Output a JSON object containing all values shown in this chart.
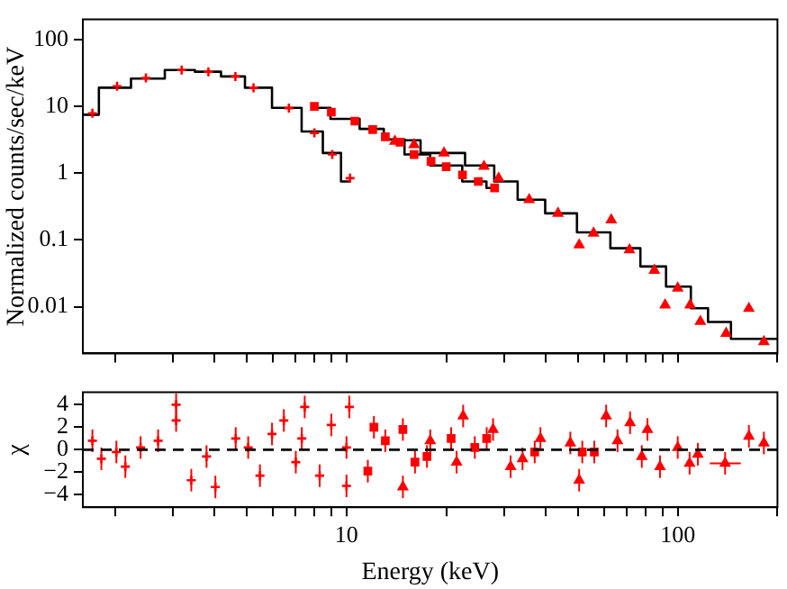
{
  "chart_data": [
    {
      "type": "scatter",
      "ylabel": "Normalized counts/sec/keV",
      "log": "xy",
      "grid": false,
      "legend": false,
      "tick_labels": "y",
      "xlim": [
        1.6,
        200
      ],
      "ylim": [
        0.002,
        200
      ],
      "xticks": [
        {
          "value": 2,
          "label": null
        },
        {
          "value": 3,
          "label": null
        },
        {
          "value": 4,
          "label": null
        },
        {
          "value": 5,
          "label": null
        },
        {
          "value": 6,
          "label": null
        },
        {
          "value": 7,
          "label": null
        },
        {
          "value": 8,
          "label": null
        },
        {
          "value": 9,
          "label": null
        },
        {
          "value": 10,
          "label": null
        },
        {
          "value": 20,
          "label": null
        },
        {
          "value": 30,
          "label": null
        },
        {
          "value": 40,
          "label": null
        },
        {
          "value": 50,
          "label": null
        },
        {
          "value": 60,
          "label": null
        },
        {
          "value": 70,
          "label": null
        },
        {
          "value": 80,
          "label": null
        },
        {
          "value": 90,
          "label": null
        },
        {
          "value": 100,
          "label": null
        },
        {
          "value": 200,
          "label": null
        }
      ],
      "yticks": [
        0.01,
        0.1,
        1,
        10,
        100
      ],
      "series": [
        {
          "type": "scatter",
          "marker": "cross",
          "color": "#ff0000",
          "x": [
            1.71,
            2.03,
            2.48,
            3.18,
            3.83,
            4.62,
            5.24,
            6.7,
            8.0,
            9.06,
            10.25
          ],
          "values": [
            7.9,
            20,
            26.6,
            35,
            33,
            28,
            19,
            9.4,
            4,
            1.9,
            0.84
          ]
        },
        {
          "type": "scatter",
          "marker": "square",
          "color": "#ff0000",
          "x": [
            8.0,
            9.0,
            10.6,
            12,
            13.1,
            14.5,
            16,
            18,
            20,
            22.4,
            25,
            28
          ],
          "values": [
            10,
            8.2,
            6.0,
            4.5,
            3.5,
            2.9,
            1.9,
            1.5,
            1.25,
            0.94,
            0.75,
            0.6
          ]
        },
        {
          "type": "scatter",
          "marker": "triangle",
          "color": "#ff0000",
          "x": [
            14,
            16,
            19.7,
            26,
            28.8,
            35.6,
            43.5,
            50.4,
            55.7,
            63,
            71.5,
            85,
            91.6,
            100,
            109,
            117,
            140,
            164,
            182
          ],
          "values": [
            3.0,
            2.66,
            2.0,
            1.26,
            0.84,
            0.4,
            0.25,
            0.084,
            0.126,
            0.2,
            0.071,
            0.035,
            0.0106,
            0.019,
            0.0106,
            0.006,
            0.004,
            0.0094,
            0.003
          ]
        },
        {
          "type": "step",
          "marker": "none",
          "color": "#000000",
          "x": [
            1.6,
            2.0,
            2.5,
            3.2,
            3.8,
            4.6,
            5.3,
            6.7,
            8,
            9,
            10.3
          ],
          "values": [
            7.5,
            19,
            26,
            35,
            33,
            28,
            19,
            9.5,
            4.2,
            2.0,
            0.75
          ]
        },
        {
          "type": "step",
          "marker": "none",
          "color": "#000000",
          "x": [
            8,
            10,
            12,
            14,
            16,
            20,
            25,
            28
          ],
          "values": [
            9.5,
            6.5,
            4.6,
            3.2,
            1.9,
            1.3,
            0.75,
            0.6
          ]
        },
        {
          "type": "step",
          "marker": "none",
          "color": "#000000",
          "x": [
            14,
            20,
            26,
            30,
            36,
            44,
            56,
            70,
            85,
            100,
            120,
            127,
            165,
            200
          ],
          "values": [
            3.1,
            2.0,
            1.3,
            0.75,
            0.4,
            0.25,
            0.13,
            0.075,
            0.04,
            0.02,
            0.0095,
            0.0059,
            0.0033,
            0.0033
          ]
        }
      ]
    },
    {
      "type": "scatter",
      "xlabel": "Energy (keV)",
      "ylabel": "χ",
      "log": "x",
      "grid": false,
      "legend": false,
      "xlim": [
        1.6,
        200
      ],
      "ylim": [
        -5.1,
        5.1
      ],
      "xticks": [
        {
          "value": 2,
          "label": null
        },
        {
          "value": 3,
          "label": null
        },
        {
          "value": 4,
          "label": null
        },
        {
          "value": 5,
          "label": null
        },
        {
          "value": 6,
          "label": null
        },
        {
          "value": 7,
          "label": null
        },
        {
          "value": 8,
          "label": null
        },
        {
          "value": 9,
          "label": null
        },
        10,
        {
          "value": 20,
          "label": null
        },
        {
          "value": 30,
          "label": null
        },
        {
          "value": 40,
          "label": null
        },
        {
          "value": 50,
          "label": null
        },
        {
          "value": 60,
          "label": null
        },
        {
          "value": 70,
          "label": null
        },
        {
          "value": 80,
          "label": null
        },
        {
          "value": 90,
          "label": null
        },
        100,
        {
          "value": 200,
          "label": null
        }
      ],
      "yticks": [
        {
          "value": -4,
          "label": "−4"
        },
        {
          "value": -2,
          "label": "−2"
        },
        0,
        2,
        4
      ],
      "ref_lines": [
        {
          "axis": "y",
          "value": 0,
          "color": "#000000",
          "line_style": "dashed"
        }
      ],
      "series": [
        {
          "type": "scatter",
          "marker": "cross",
          "color": "#ff0000",
          "x": [
            1.71,
            1.82,
            2.02,
            2.15,
            2.39,
            2.7,
            3.06,
            3.06,
            3.4,
            3.78,
            4.02,
            4.63,
            5.05,
            5.48,
            5.96,
            6.47,
            7.03,
            7.33,
            7.48,
            8.3,
            9.0,
            10.0,
            10.0,
            10.2
          ],
          "values": [
            0.8,
            -0.8,
            -0.2,
            -1.5,
            0.2,
            0.8,
            2.6,
            4.0,
            -2.7,
            -0.6,
            -3.3,
            1.0,
            0.2,
            -2.3,
            1.4,
            2.6,
            -1.1,
            1.0,
            3.8,
            -2.3,
            2.2,
            -3.2,
            0.2,
            3.8
          ],
          "errors": [
            1,
            1,
            1,
            1,
            1,
            1,
            1,
            1,
            1,
            1,
            1,
            1,
            1,
            1,
            1,
            1,
            1,
            1,
            1,
            1,
            1,
            1,
            1,
            1
          ]
        },
        {
          "type": "scatter",
          "marker": "square",
          "color": "#ff0000",
          "x": [
            11.6,
            12.1,
            13.1,
            14.8,
            16.1,
            17.5,
            20.7,
            24.4,
            26.5,
            37,
            51.5,
            56
          ],
          "values": [
            -1.9,
            2.0,
            0.8,
            1.8,
            -1.1,
            -0.6,
            1.0,
            0.2,
            1.0,
            -0.2,
            -0.2,
            -0.2
          ],
          "errors": [
            1,
            1,
            1,
            1,
            1,
            1,
            1,
            1,
            1,
            1,
            1,
            1
          ]
        },
        {
          "type": "scatter",
          "marker": "triangle",
          "color": "#ff0000",
          "x": [
            14.8,
            17.9,
            21.5,
            22.5,
            27.7,
            31.3,
            34.0,
            38.5,
            47.4,
            50.4,
            60.8,
            65.8,
            71.8,
            77.9,
            81,
            88.4,
            100,
            108.6,
            115,
            139,
            164,
            182
          ],
          "values": [
            -3.3,
            0.8,
            -1.1,
            3.0,
            1.8,
            -1.5,
            -0.8,
            1.0,
            0.6,
            -2.7,
            3.0,
            0.8,
            2.4,
            -0.6,
            1.8,
            -1.5,
            0.2,
            -1.2,
            -0.4,
            -1.2,
            1.2,
            0.6
          ],
          "errors": [
            1,
            1,
            1,
            1,
            1,
            1,
            1,
            1,
            1,
            1,
            1,
            1,
            1,
            1,
            1,
            1,
            1,
            1,
            1,
            1,
            1,
            1
          ],
          "xerrors": [
            null,
            null,
            null,
            null,
            null,
            null,
            null,
            null,
            null,
            null,
            null,
            null,
            null,
            null,
            null,
            null,
            null,
            null,
            null,
            [
              125,
              155
            ],
            null,
            null
          ]
        }
      ]
    }
  ]
}
